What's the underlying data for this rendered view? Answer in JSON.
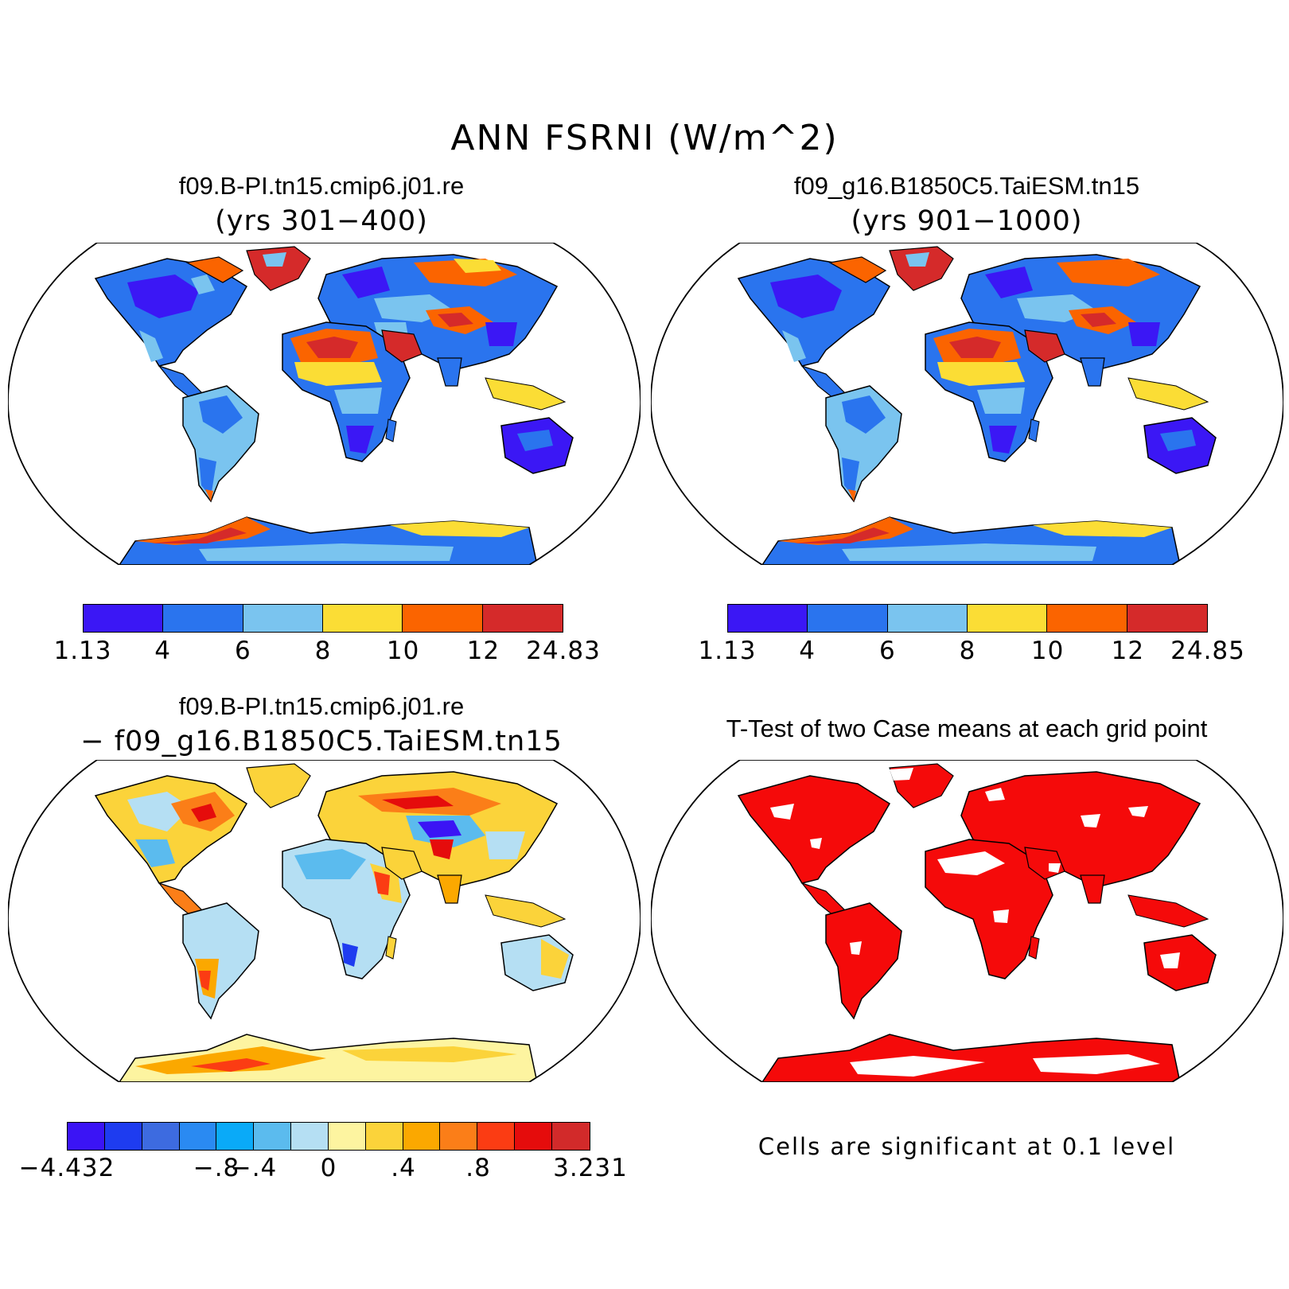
{
  "title": "ANN FSRNI (W/m^2)",
  "panels": {
    "p1": {
      "title": "f09.B-PI.tn15.cmip6.j01.re",
      "subtitle": "(yrs 301−400)"
    },
    "p2": {
      "title": "f09_g16.B1850C5.TaiESM.tn15",
      "subtitle": "(yrs 901−1000)"
    },
    "p3": {
      "title": "f09.B-PI.tn15.cmip6.j01.re",
      "subtitle": "− f09_g16.B1850C5.TaiESM.tn15"
    },
    "p4": {
      "title": "T-Test of two Case means at each grid point",
      "note": "Cells are significant at 0.1 level"
    }
  },
  "colorbars": {
    "cb1": {
      "colors": [
        "#3b17f5",
        "#2a74ee",
        "#7ac4ef",
        "#fbdd35",
        "#fb6400",
        "#d52a2a"
      ],
      "labels": [
        "1.13",
        "4",
        "6",
        "8",
        "10",
        "12",
        "24.83"
      ]
    },
    "cb2": {
      "colors": [
        "#3b17f5",
        "#2a74ee",
        "#7ac4ef",
        "#fbdd35",
        "#fb6400",
        "#d52a2a"
      ],
      "labels": [
        "1.13",
        "4",
        "6",
        "8",
        "10",
        "12",
        "24.85"
      ]
    },
    "cb3": {
      "colors": [
        "#3b14f5",
        "#1e3cf0",
        "#3d6be0",
        "#2a8af2",
        "#0aaaf8",
        "#5bbbee",
        "#b5dff3",
        "#fdf4a0",
        "#fbd33a",
        "#fba800",
        "#fb7e18",
        "#fb3c13",
        "#e50c0c",
        "#d22a2a"
      ],
      "labels": [
        "−4.432",
        "−.8",
        "−.4",
        "0",
        ".4",
        ".8",
        "3.231"
      ]
    }
  },
  "significance_color": "#f50a0a"
}
